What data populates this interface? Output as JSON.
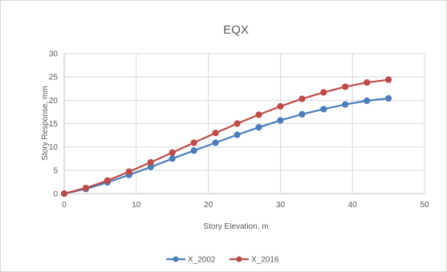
{
  "chart_data": {
    "type": "line",
    "title": "EQX",
    "xlabel": "Story Elevation, m",
    "ylabel": "Story Response, mm",
    "xlim": [
      0,
      50
    ],
    "ylim": [
      0,
      30
    ],
    "x_ticks": [
      "0",
      "10",
      "20",
      "30",
      "40",
      "50"
    ],
    "y_ticks": [
      "0",
      "5",
      "10",
      "15",
      "20",
      "25",
      "30"
    ],
    "grid": true,
    "legend_position": "bottom",
    "x": [
      0,
      3,
      6,
      9,
      12,
      15,
      18,
      21,
      24,
      27,
      30,
      33,
      36,
      39,
      42,
      45
    ],
    "series": [
      {
        "name": "X_2002",
        "color": "#4a7ebb",
        "values": [
          0,
          1.0,
          2.4,
          4.0,
          5.7,
          7.5,
          9.2,
          10.9,
          12.6,
          14.2,
          15.7,
          17.0,
          18.1,
          19.1,
          19.9,
          20.4
        ]
      },
      {
        "name": "X_2016",
        "color": "#be4b48",
        "values": [
          0,
          1.2,
          2.8,
          4.7,
          6.7,
          8.8,
          10.9,
          13.0,
          15.0,
          16.9,
          18.7,
          20.3,
          21.7,
          22.9,
          23.8,
          24.4
        ]
      }
    ]
  }
}
